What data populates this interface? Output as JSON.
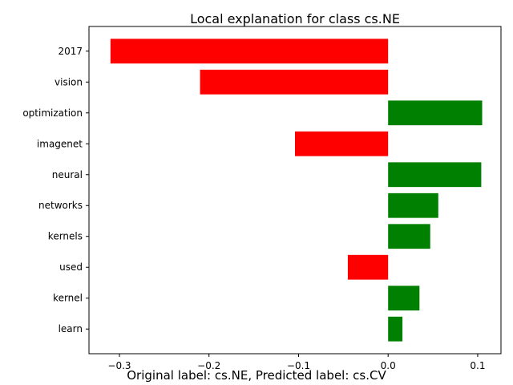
{
  "chart_data": {
    "type": "bar",
    "orientation": "horizontal",
    "title": "Local explanation for class cs.NE",
    "caption": "Original label: cs.NE, Predicted label: cs.CV",
    "categories": [
      "2017",
      "vision",
      "optimization",
      "imagenet",
      "neural",
      "networks",
      "kernels",
      "used",
      "kernel",
      "learn"
    ],
    "values": [
      -0.31,
      -0.21,
      0.105,
      -0.104,
      0.104,
      0.056,
      0.047,
      -0.045,
      0.035,
      0.016
    ],
    "xlim": [
      -0.334,
      0.126
    ],
    "xticks": [
      -0.3,
      -0.2,
      -0.1,
      0.0,
      0.1
    ],
    "xtick_labels": [
      "−0.3",
      "−0.2",
      "−0.1",
      "0.0",
      "0.1"
    ],
    "grid": false,
    "colors": {
      "positive": "#008000",
      "negative": "#ff0000"
    }
  }
}
